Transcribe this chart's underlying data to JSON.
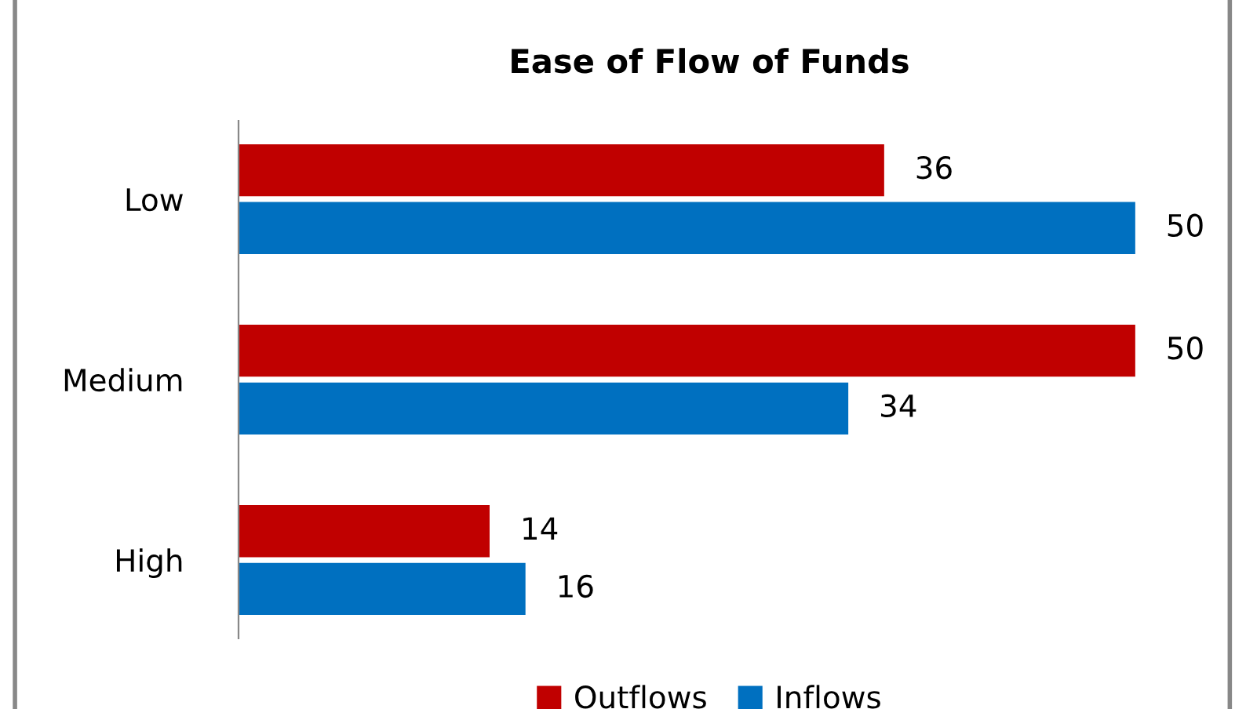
{
  "chart_data": {
    "type": "bar",
    "orientation": "horizontal",
    "title": "Ease of Flow of Funds",
    "categories": [
      "Low",
      "Medium",
      "High"
    ],
    "series": [
      {
        "name": "Outflows",
        "color": "#c00000",
        "values": [
          36,
          50,
          14
        ]
      },
      {
        "name": "Inflows",
        "color": "#0070c0",
        "values": [
          50,
          34,
          16
        ]
      }
    ],
    "data_labels": true,
    "legend": "bottom",
    "grid": false,
    "tick_labels": "y"
  }
}
